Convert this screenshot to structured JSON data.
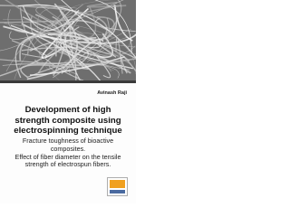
{
  "cover": {
    "author": "Avinash Raji",
    "title_lines": [
      "Development of high",
      "strength composite using",
      "electrospinning technique"
    ],
    "subtitle_lines": [
      "Fracture toughness of bioactive",
      "composites.",
      "Effect of fiber diameter on the tensile",
      "strength of electrospun fibers."
    ]
  }
}
